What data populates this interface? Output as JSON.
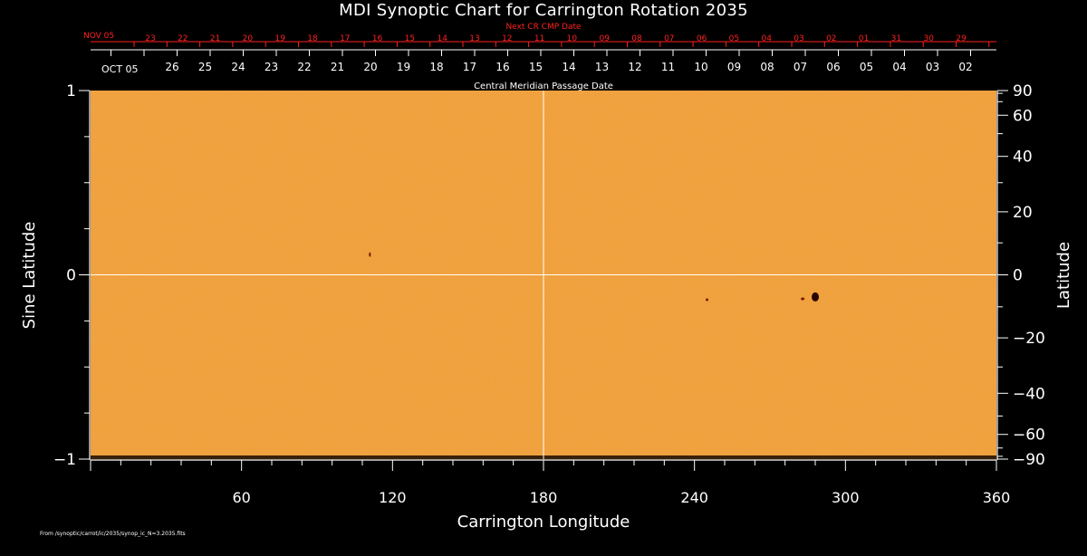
{
  "chart_data": {
    "type": "heatmap",
    "title": "MDI Synoptic Chart for Carrington Rotation 2035",
    "xlabel": "Carrington Longitude",
    "ylabel_left": "Sine Latitude",
    "ylabel_right": "Latitude",
    "xlim": [
      0,
      360
    ],
    "ylim": [
      -1,
      1
    ],
    "x_ticks": [
      60,
      120,
      180,
      240,
      300,
      360
    ],
    "y_ticks_left": [
      {
        "value": 1,
        "label": "1"
      },
      {
        "value": 0,
        "label": "0"
      },
      {
        "value": -1,
        "label": "−1"
      }
    ],
    "y_ticks_right": [
      {
        "deg": 90,
        "label": "90"
      },
      {
        "deg": 60,
        "label": "60"
      },
      {
        "deg": 40,
        "label": "40"
      },
      {
        "deg": 20,
        "label": "20"
      },
      {
        "deg": 0,
        "label": "0"
      },
      {
        "deg": -20,
        "label": "−20"
      },
      {
        "deg": -40,
        "label": "−40"
      },
      {
        "deg": -60,
        "label": "−60"
      },
      {
        "deg": -90,
        "label": "−90"
      }
    ],
    "top_axis_label": "Central Meridian Passage Date",
    "top_axis_month_label": "OCT 05",
    "top_axis_days": [
      "26",
      "25",
      "24",
      "23",
      "22",
      "21",
      "20",
      "19",
      "18",
      "17",
      "16",
      "15",
      "14",
      "13",
      "12",
      "11",
      "10",
      "09",
      "08",
      "07",
      "06",
      "05",
      "04",
      "03",
      "02"
    ],
    "next_cr_label": "Next CR CMP Date",
    "next_cr_month_label": "NOV 05",
    "next_cr_days": [
      "23",
      "22",
      "21",
      "20",
      "19",
      "18",
      "17",
      "16",
      "15",
      "14",
      "13",
      "12",
      "11",
      "10",
      "09",
      "08",
      "07",
      "06",
      "05",
      "04",
      "03",
      "02",
      "01",
      "31",
      "30",
      "29"
    ],
    "map_color": "#f0a040",
    "grid_color": "#ffffff",
    "features": [
      {
        "lon": 288,
        "sinlat": -0.12,
        "rx": 4,
        "ry": 5,
        "color": "#2a0500"
      },
      {
        "lon": 283,
        "sinlat": -0.13,
        "rx": 2,
        "ry": 1.5,
        "color": "#7a1800"
      },
      {
        "lon": 245,
        "sinlat": -0.135,
        "rx": 1.5,
        "ry": 1.5,
        "color": "#7a1800"
      },
      {
        "lon": 111,
        "sinlat": 0.11,
        "rx": 1,
        "ry": 2.5,
        "color": "#7a1800"
      }
    ],
    "footer": "From /synoptic/carrot/ic/2035/synop_ic_N=3.2035.fits"
  }
}
